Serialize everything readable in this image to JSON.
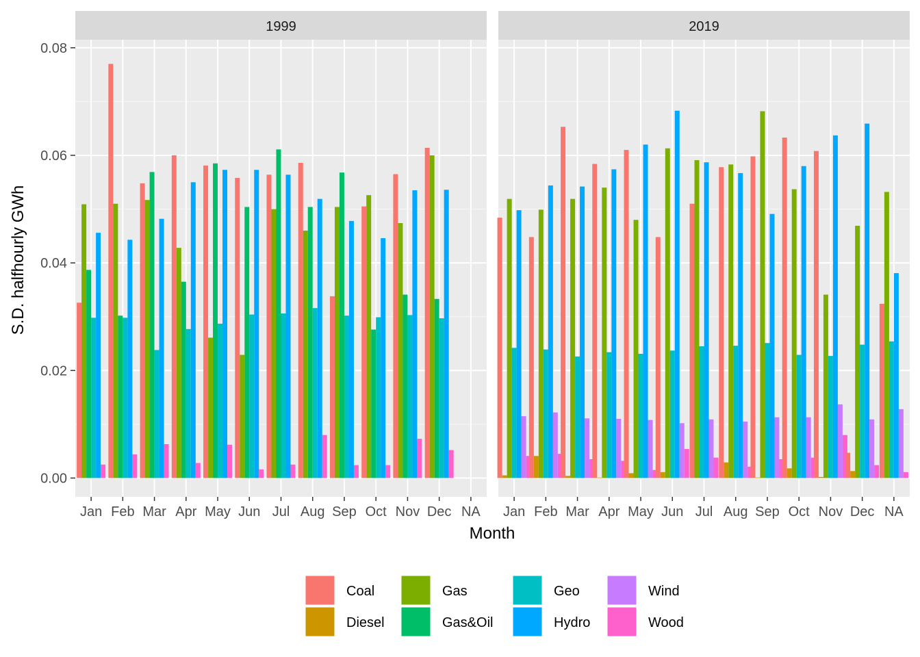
{
  "chart_data": {
    "type": "bar",
    "ylabel": "S.D. halfhourly GWh",
    "xlabel": "Month",
    "ylim": [
      -0.0035,
      0.0815
    ],
    "yticks": [
      "0.00",
      "0.02",
      "0.04",
      "0.06",
      "0.08"
    ],
    "ytick_values": [
      0,
      0.02,
      0.04,
      0.06,
      0.08
    ],
    "categories": [
      "Jan",
      "Feb",
      "Mar",
      "Apr",
      "May",
      "Jun",
      "Jul",
      "Aug",
      "Sep",
      "Oct",
      "Nov",
      "Dec",
      "NA"
    ],
    "grid": true,
    "legend_position": "bottom",
    "legend": [
      {
        "name": "Coal",
        "color": "#F8766D"
      },
      {
        "name": "Diesel",
        "color": "#CD9600"
      },
      {
        "name": "Gas",
        "color": "#7CAE00"
      },
      {
        "name": "Gas&Oil",
        "color": "#00BE67"
      },
      {
        "name": "Geo",
        "color": "#00BFC4"
      },
      {
        "name": "Hydro",
        "color": "#00A9FF"
      },
      {
        "name": "Wind",
        "color": "#C77CFF"
      },
      {
        "name": "Wood",
        "color": "#FF61CC"
      }
    ],
    "panels": [
      {
        "title": "1999",
        "months": [
          [
            [
              "Coal",
              0.0326
            ],
            [
              "Gas",
              0.0509
            ],
            [
              "Gas&Oil",
              0.0387
            ],
            [
              "Geo",
              0.0298
            ],
            [
              "Hydro",
              0.0456
            ],
            [
              "Wood",
              0.0025
            ]
          ],
          [
            [
              "Coal",
              0.077
            ],
            [
              "Gas",
              0.051
            ],
            [
              "Gas&Oil",
              0.0302
            ],
            [
              "Geo",
              0.0298
            ],
            [
              "Hydro",
              0.0443
            ],
            [
              "Wood",
              0.0044
            ]
          ],
          [
            [
              "Coal",
              0.0548
            ],
            [
              "Gas",
              0.0517
            ],
            [
              "Gas&Oil",
              0.0569
            ],
            [
              "Geo",
              0.0238
            ],
            [
              "Hydro",
              0.0482
            ],
            [
              "Wood",
              0.0063
            ]
          ],
          [
            [
              "Coal",
              0.06
            ],
            [
              "Gas",
              0.0428
            ],
            [
              "Gas&Oil",
              0.0365
            ],
            [
              "Geo",
              0.0277
            ],
            [
              "Hydro",
              0.055
            ],
            [
              "Wood",
              0.0028
            ]
          ],
          [
            [
              "Coal",
              0.0581
            ],
            [
              "Gas",
              0.0261
            ],
            [
              "Gas&Oil",
              0.0585
            ],
            [
              "Geo",
              0.0287
            ],
            [
              "Hydro",
              0.0573
            ],
            [
              "Wood",
              0.0062
            ]
          ],
          [
            [
              "Coal",
              0.0558
            ],
            [
              "Gas",
              0.0229
            ],
            [
              "Gas&Oil",
              0.0504
            ],
            [
              "Geo",
              0.0304
            ],
            [
              "Hydro",
              0.0573
            ],
            [
              "Wood",
              0.0016
            ]
          ],
          [
            [
              "Coal",
              0.0564
            ],
            [
              "Gas",
              0.05
            ],
            [
              "Gas&Oil",
              0.0611
            ],
            [
              "Geo",
              0.0306
            ],
            [
              "Hydro",
              0.0564
            ],
            [
              "Wood",
              0.0025
            ]
          ],
          [
            [
              "Coal",
              0.0586
            ],
            [
              "Gas",
              0.046
            ],
            [
              "Gas&Oil",
              0.0504
            ],
            [
              "Geo",
              0.0316
            ],
            [
              "Hydro",
              0.0519
            ],
            [
              "Wood",
              0.008
            ]
          ],
          [
            [
              "Coal",
              0.0338
            ],
            [
              "Gas",
              0.0504
            ],
            [
              "Gas&Oil",
              0.0568
            ],
            [
              "Geo",
              0.0302
            ],
            [
              "Hydro",
              0.0478
            ],
            [
              "Wood",
              0.0024
            ]
          ],
          [
            [
              "Coal",
              0.0505
            ],
            [
              "Gas",
              0.0526
            ],
            [
              "Gas&Oil",
              0.0276
            ],
            [
              "Geo",
              0.0299
            ],
            [
              "Hydro",
              0.0446
            ],
            [
              "Wood",
              0.0024
            ]
          ],
          [
            [
              "Coal",
              0.0565
            ],
            [
              "Gas",
              0.0474
            ],
            [
              "Gas&Oil",
              0.0341
            ],
            [
              "Geo",
              0.0303
            ],
            [
              "Hydro",
              0.0535
            ],
            [
              "Wood",
              0.0073
            ]
          ],
          [
            [
              "Coal",
              0.0614
            ],
            [
              "Gas",
              0.06
            ],
            [
              "Gas&Oil",
              0.0333
            ],
            [
              "Geo",
              0.0297
            ],
            [
              "Hydro",
              0.0536
            ],
            [
              "Wood",
              0.0052
            ]
          ],
          []
        ]
      },
      {
        "title": "2019",
        "months": [
          [
            [
              "Coal",
              0.0484
            ],
            [
              "Diesel",
              0.0005
            ],
            [
              "Gas",
              0.0519
            ],
            [
              "Geo",
              0.0242
            ],
            [
              "Hydro",
              0.0498
            ],
            [
              "Wind",
              0.0115
            ],
            [
              "Wood",
              0.0041
            ]
          ],
          [
            [
              "Coal",
              0.0448
            ],
            [
              "Diesel",
              0.0041
            ],
            [
              "Gas",
              0.0499
            ],
            [
              "Geo",
              0.0239
            ],
            [
              "Hydro",
              0.0544
            ],
            [
              "Wind",
              0.0122
            ],
            [
              "Wood",
              0.0045
            ]
          ],
          [
            [
              "Coal",
              0.0653
            ],
            [
              "Diesel",
              0.0004
            ],
            [
              "Gas",
              0.0519
            ],
            [
              "Geo",
              0.0226
            ],
            [
              "Hydro",
              0.0542
            ],
            [
              "Wind",
              0.0111
            ],
            [
              "Wood",
              0.0035
            ]
          ],
          [
            [
              "Coal",
              0.0584
            ],
            [
              "Diesel",
              0.0001
            ],
            [
              "Gas",
              0.054
            ],
            [
              "Geo",
              0.0234
            ],
            [
              "Hydro",
              0.0574
            ],
            [
              "Wind",
              0.011
            ],
            [
              "Wood",
              0.0032
            ]
          ],
          [
            [
              "Coal",
              0.061
            ],
            [
              "Diesel",
              0.0009
            ],
            [
              "Gas",
              0.048
            ],
            [
              "Geo",
              0.0231
            ],
            [
              "Hydro",
              0.062
            ],
            [
              "Wind",
              0.0108
            ],
            [
              "Wood",
              0.0015
            ]
          ],
          [
            [
              "Coal",
              0.0448
            ],
            [
              "Diesel",
              0.0011
            ],
            [
              "Gas",
              0.0613
            ],
            [
              "Geo",
              0.0237
            ],
            [
              "Hydro",
              0.0683
            ],
            [
              "Wind",
              0.0102
            ],
            [
              "Wood",
              0.0054
            ]
          ],
          [
            [
              "Coal",
              0.051
            ],
            [
              "Gas",
              0.0591
            ],
            [
              "Geo",
              0.0245
            ],
            [
              "Hydro",
              0.0587
            ],
            [
              "Wind",
              0.0109
            ],
            [
              "Wood",
              0.0038
            ]
          ],
          [
            [
              "Coal",
              0.0578
            ],
            [
              "Diesel",
              0.0029
            ],
            [
              "Gas",
              0.0583
            ],
            [
              "Geo",
              0.0246
            ],
            [
              "Hydro",
              0.0567
            ],
            [
              "Wind",
              0.0105
            ],
            [
              "Wood",
              0.0021
            ]
          ],
          [
            [
              "Coal",
              0.0598
            ],
            [
              "Diesel",
              0.0001
            ],
            [
              "Gas",
              0.0682
            ],
            [
              "Geo",
              0.0251
            ],
            [
              "Hydro",
              0.0491
            ],
            [
              "Wind",
              0.0113
            ],
            [
              "Wood",
              0.0035
            ]
          ],
          [
            [
              "Coal",
              0.0633
            ],
            [
              "Diesel",
              0.0018
            ],
            [
              "Gas",
              0.0537
            ],
            [
              "Geo",
              0.0229
            ],
            [
              "Hydro",
              0.058
            ],
            [
              "Wind",
              0.0113
            ],
            [
              "Wood",
              0.0038
            ]
          ],
          [
            [
              "Coal",
              0.0608
            ],
            [
              "Diesel",
              0.0002
            ],
            [
              "Gas",
              0.0341
            ],
            [
              "Geo",
              0.0227
            ],
            [
              "Hydro",
              0.0637
            ],
            [
              "Wind",
              0.0137
            ],
            [
              "Wood",
              0.008
            ]
          ],
          [
            [
              "Coal",
              0.0047
            ],
            [
              "Diesel",
              0.0013
            ],
            [
              "Gas",
              0.0469
            ],
            [
              "Geo",
              0.0248
            ],
            [
              "Hydro",
              0.0659
            ],
            [
              "Wind",
              0.0109
            ],
            [
              "Wood",
              0.0024
            ]
          ],
          [
            [
              "Coal",
              0.0324
            ],
            [
              "Gas",
              0.0532
            ],
            [
              "Geo",
              0.0254
            ],
            [
              "Hydro",
              0.0381
            ],
            [
              "Wind",
              0.0128
            ],
            [
              "Wood",
              0.0011
            ]
          ]
        ]
      }
    ]
  }
}
